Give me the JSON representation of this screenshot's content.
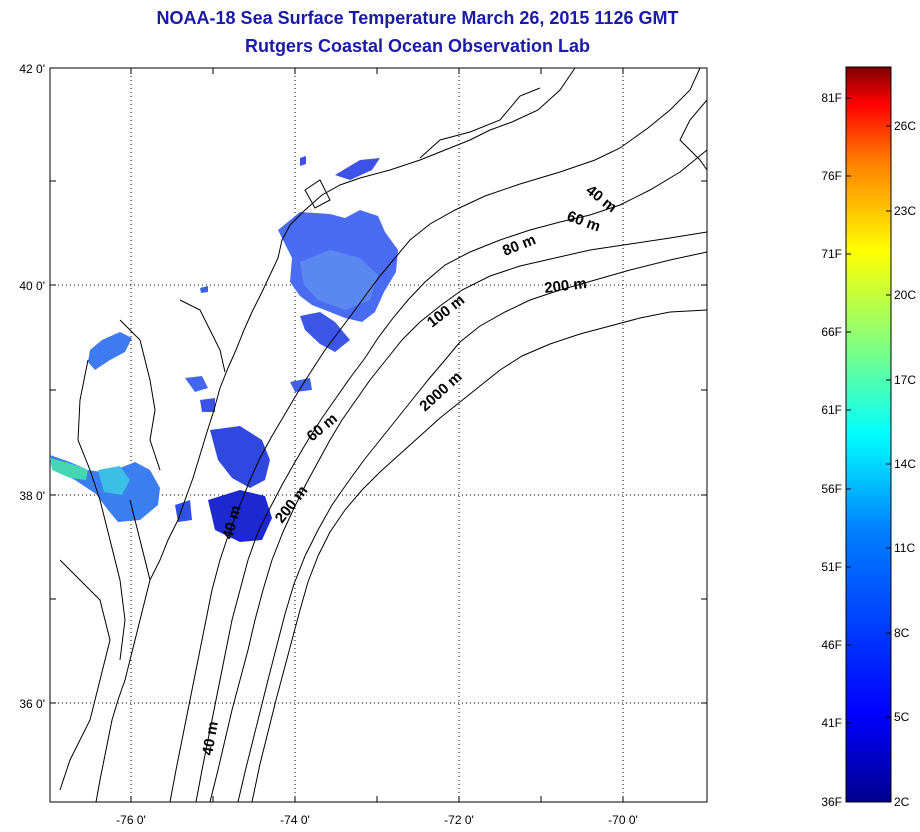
{
  "header": {
    "title_line1": "NOAA-18 Sea Surface Temperature March 26, 2015 1126 GMT",
    "title_line2": "Rutgers Coastal Ocean Observation Lab"
  },
  "map": {
    "lat_labels": [
      "42 0'",
      "40 0'",
      "38 0'",
      "36 0'"
    ],
    "lon_labels": [
      "-76 0'",
      "-74 0'",
      "-72 0'",
      "-70 0'"
    ],
    "contour_labels": [
      "40 m",
      "60 m",
      "80 m",
      "200 m",
      "100 m",
      "2000 m",
      "60 m",
      "200 m",
      "40 m",
      "40 m"
    ]
  },
  "colorbar": {
    "fahrenheit_labels": [
      "81F",
      "76F",
      "71F",
      "66F",
      "61F",
      "56F",
      "51F",
      "46F",
      "41F",
      "36F"
    ],
    "celsius_labels": [
      "26C",
      "23C",
      "20C",
      "17C",
      "14C",
      "11C",
      "8C",
      "5C",
      "2C"
    ],
    "colors": [
      "#7f0000",
      "#ff0000",
      "#ff8000",
      "#ffff00",
      "#80ff80",
      "#00ffff",
      "#0080ff",
      "#0000ff",
      "#00008f"
    ]
  }
}
